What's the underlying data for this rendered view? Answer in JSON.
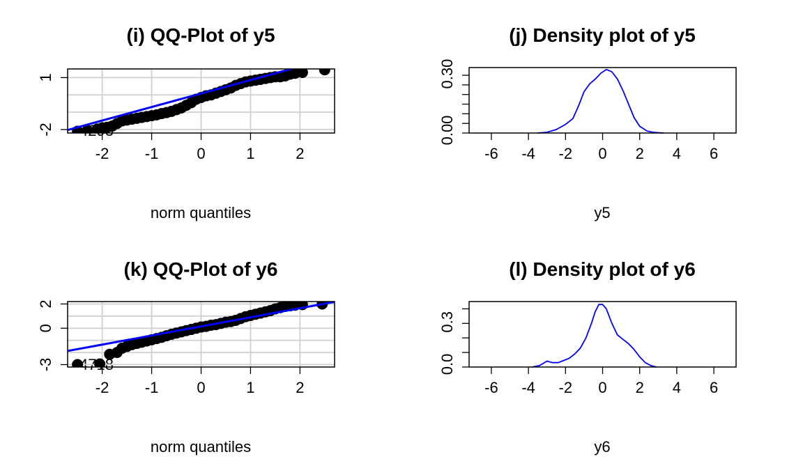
{
  "colors": {
    "points": "#000000",
    "line": "#0000ff",
    "grid": "#d3d3d3",
    "frame": "#000000",
    "background": "#ffffff"
  },
  "chart_data": [
    {
      "type": "scatter",
      "title": "(i) QQ-Plot of y5",
      "xlabel": "norm quantiles",
      "ylabel": "",
      "xlim": [
        -2.7,
        2.7
      ],
      "ylim": [
        -2.2,
        1.5
      ],
      "x_ticks": [
        "-2",
        "-1",
        "0",
        "1",
        "2"
      ],
      "y_ticks": [
        "-2",
        "1"
      ],
      "grid": true,
      "reference_line": {
        "intercept": 0.08,
        "slope": 0.78
      },
      "point_labels": [
        "4293"
      ],
      "points": [
        [
          -2.5,
          -2.1
        ],
        [
          -2.3,
          -2.05
        ],
        [
          -2.1,
          -1.97
        ],
        [
          -2.0,
          -1.9
        ],
        [
          -1.9,
          -1.87
        ],
        [
          -1.8,
          -1.8
        ],
        [
          -1.7,
          -1.65
        ],
        [
          -1.6,
          -1.5
        ],
        [
          -1.5,
          -1.45
        ],
        [
          -1.4,
          -1.4
        ],
        [
          -1.3,
          -1.35
        ],
        [
          -1.2,
          -1.3
        ],
        [
          -1.1,
          -1.25
        ],
        [
          -1.0,
          -1.2
        ],
        [
          -0.9,
          -1.15
        ],
        [
          -0.8,
          -1.08
        ],
        [
          -0.7,
          -1.02
        ],
        [
          -0.6,
          -0.95
        ],
        [
          -0.5,
          -0.85
        ],
        [
          -0.4,
          -0.75
        ],
        [
          -0.3,
          -0.6
        ],
        [
          -0.2,
          -0.45
        ],
        [
          -0.1,
          -0.25
        ],
        [
          0.0,
          -0.15
        ],
        [
          0.1,
          -0.05
        ],
        [
          0.2,
          0.0
        ],
        [
          0.3,
          0.1
        ],
        [
          0.4,
          0.2
        ],
        [
          0.5,
          0.3
        ],
        [
          0.6,
          0.4
        ],
        [
          0.7,
          0.55
        ],
        [
          0.8,
          0.65
        ],
        [
          0.9,
          0.75
        ],
        [
          1.0,
          0.8
        ],
        [
          1.1,
          0.85
        ],
        [
          1.2,
          0.9
        ],
        [
          1.3,
          0.95
        ],
        [
          1.4,
          1.0
        ],
        [
          1.5,
          1.05
        ],
        [
          1.6,
          1.05
        ],
        [
          1.7,
          1.1
        ],
        [
          1.8,
          1.2
        ],
        [
          1.9,
          1.25
        ],
        [
          2.05,
          1.3
        ],
        [
          2.5,
          1.45
        ]
      ]
    },
    {
      "type": "line",
      "title": "(j) Density plot of y5",
      "xlabel": "y5",
      "ylabel": "",
      "xlim": [
        -7.2,
        7.2
      ],
      "ylim": [
        0,
        0.34
      ],
      "x_ticks": [
        "-6",
        "-4",
        "-2",
        "0",
        "2",
        "4",
        "6"
      ],
      "y_ticks": [
        "0.00",
        "0.30"
      ],
      "y_tick_values": [
        0,
        0.3
      ],
      "y_minor_ticks": [
        0.05,
        0.1,
        0.15,
        0.2,
        0.25
      ],
      "grid": false,
      "x": [
        -3.5,
        -3.0,
        -2.5,
        -2.0,
        -1.6,
        -1.3,
        -1.0,
        -0.7,
        -0.4,
        -0.1,
        0.2,
        0.5,
        0.8,
        1.1,
        1.4,
        1.7,
        2.0,
        2.4,
        2.8,
        3.3
      ],
      "y": [
        0.0,
        0.004,
        0.018,
        0.045,
        0.075,
        0.14,
        0.215,
        0.255,
        0.28,
        0.31,
        0.33,
        0.318,
        0.28,
        0.22,
        0.15,
        0.08,
        0.035,
        0.01,
        0.003,
        0.0
      ]
    },
    {
      "type": "scatter",
      "title": "(k) QQ-Plot of y6",
      "xlabel": "norm quantiles",
      "ylabel": "",
      "xlim": [
        -2.7,
        2.7
      ],
      "ylim": [
        -3.2,
        2.2
      ],
      "x_ticks": [
        "-2",
        "-1",
        "0",
        "1",
        "2"
      ],
      "y_ticks": [
        "-3",
        "0",
        "2"
      ],
      "grid": true,
      "reference_line": {
        "intercept": 0.15,
        "slope": 0.75
      },
      "point_labels": [
        "4718"
      ],
      "points": [
        [
          -2.5,
          -3.0
        ],
        [
          -2.05,
          -2.95
        ],
        [
          -1.85,
          -2.15
        ],
        [
          -1.7,
          -2.0
        ],
        [
          -1.6,
          -1.65
        ],
        [
          -1.5,
          -1.5
        ],
        [
          -1.4,
          -1.35
        ],
        [
          -1.3,
          -1.25
        ],
        [
          -1.2,
          -1.15
        ],
        [
          -1.1,
          -1.05
        ],
        [
          -1.0,
          -0.95
        ],
        [
          -0.9,
          -0.85
        ],
        [
          -0.8,
          -0.75
        ],
        [
          -0.7,
          -0.62
        ],
        [
          -0.6,
          -0.5
        ],
        [
          -0.5,
          -0.4
        ],
        [
          -0.4,
          -0.3
        ],
        [
          -0.3,
          -0.2
        ],
        [
          -0.2,
          -0.1
        ],
        [
          -0.1,
          0.0
        ],
        [
          0.0,
          0.1
        ],
        [
          0.1,
          0.15
        ],
        [
          0.2,
          0.25
        ],
        [
          0.3,
          0.3
        ],
        [
          0.4,
          0.4
        ],
        [
          0.5,
          0.5
        ],
        [
          0.6,
          0.55
        ],
        [
          0.7,
          0.65
        ],
        [
          0.8,
          0.8
        ],
        [
          0.9,
          0.95
        ],
        [
          1.0,
          1.05
        ],
        [
          1.1,
          1.15
        ],
        [
          1.2,
          1.25
        ],
        [
          1.3,
          1.35
        ],
        [
          1.4,
          1.45
        ],
        [
          1.5,
          1.6
        ],
        [
          1.6,
          1.7
        ],
        [
          1.7,
          1.8
        ],
        [
          1.8,
          1.85
        ],
        [
          1.9,
          1.9
        ],
        [
          2.05,
          1.95
        ],
        [
          2.45,
          2.0
        ]
      ]
    },
    {
      "type": "line",
      "title": "(l) Density plot of y6",
      "xlabel": "y6",
      "ylabel": "",
      "xlim": [
        -7.2,
        7.2
      ],
      "ylim": [
        0,
        0.45
      ],
      "x_ticks": [
        "-6",
        "-4",
        "-2",
        "0",
        "2",
        "4",
        "6"
      ],
      "y_ticks": [
        "0.0",
        "0.3"
      ],
      "y_tick_values": [
        0,
        0.3
      ],
      "y_minor_ticks": [
        0.1,
        0.2,
        0.4
      ],
      "grid": false,
      "x": [
        -3.8,
        -3.4,
        -3.0,
        -2.7,
        -2.4,
        -2.1,
        -1.8,
        -1.5,
        -1.2,
        -0.9,
        -0.6,
        -0.4,
        -0.2,
        0.0,
        0.2,
        0.5,
        0.8,
        1.1,
        1.4,
        1.7,
        2.0,
        2.3,
        2.6,
        2.9
      ],
      "y": [
        0.0,
        0.01,
        0.04,
        0.03,
        0.03,
        0.045,
        0.06,
        0.09,
        0.13,
        0.2,
        0.3,
        0.38,
        0.43,
        0.43,
        0.4,
        0.3,
        0.22,
        0.19,
        0.16,
        0.12,
        0.07,
        0.03,
        0.01,
        0.0
      ]
    }
  ]
}
